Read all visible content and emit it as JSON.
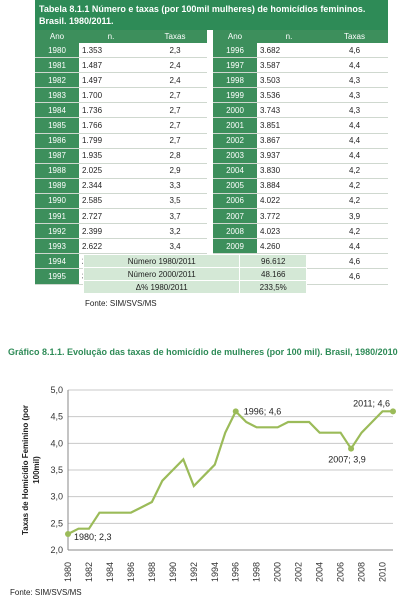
{
  "table": {
    "title": "Tabela 8.1.1 Número e taxas (por 100mil mulheres) de homicídios femininos. Brasil. 1980/2011.",
    "headers": [
      "Ano",
      "n.",
      "Taxas"
    ],
    "rows_left": [
      [
        "1980",
        "1.353",
        "2,3"
      ],
      [
        "1981",
        "1.487",
        "2,4"
      ],
      [
        "1982",
        "1.497",
        "2,4"
      ],
      [
        "1983",
        "1.700",
        "2,7"
      ],
      [
        "1984",
        "1.736",
        "2,7"
      ],
      [
        "1985",
        "1.766",
        "2,7"
      ],
      [
        "1986",
        "1.799",
        "2,7"
      ],
      [
        "1987",
        "1.935",
        "2,8"
      ],
      [
        "1988",
        "2.025",
        "2,9"
      ],
      [
        "1989",
        "2.344",
        "3,3"
      ],
      [
        "1990",
        "2.585",
        "3,5"
      ],
      [
        "1991",
        "2.727",
        "3,7"
      ],
      [
        "1992",
        "2.399",
        "3,2"
      ],
      [
        "1993",
        "2.622",
        "3,4"
      ],
      [
        "1994",
        "2.838",
        "3,6"
      ],
      [
        "1995",
        "3.325",
        "4,2"
      ]
    ],
    "rows_right": [
      [
        "1996",
        "3.682",
        "4,6"
      ],
      [
        "1997",
        "3.587",
        "4,4"
      ],
      [
        "1998",
        "3.503",
        "4,3"
      ],
      [
        "1999",
        "3.536",
        "4,3"
      ],
      [
        "2000",
        "3.743",
        "4,3"
      ],
      [
        "2001",
        "3.851",
        "4,4"
      ],
      [
        "2002",
        "3.867",
        "4,4"
      ],
      [
        "2003",
        "3.937",
        "4,4"
      ],
      [
        "2004",
        "3.830",
        "4,2"
      ],
      [
        "2005",
        "3.884",
        "4,2"
      ],
      [
        "2006",
        "4.022",
        "4,2"
      ],
      [
        "2007",
        "3.772",
        "3,9"
      ],
      [
        "2008",
        "4.023",
        "4,2"
      ],
      [
        "2009",
        "4.260",
        "4,4"
      ],
      [
        "2010",
        "4.465",
        "4,6"
      ],
      [
        "2011",
        "4.512",
        "4,6"
      ]
    ],
    "summary": [
      [
        "Número 1980/2011",
        "96.612"
      ],
      [
        "Número 2000/2011",
        "48.166"
      ],
      [
        "Δ% 1980/2011",
        "233,5%"
      ]
    ],
    "source": "Fonte: SIM/SVS/MS"
  },
  "graph": {
    "title": "Gráfico 8.1.1. Evolução das taxas de homicídio de mulheres (por 100 mil). Brasil, 1980/2010",
    "source": "Fonte: SIM/SVS/MS"
  },
  "chart_data": {
    "type": "line",
    "title": "Gráfico 8.1.1. Evolução das taxas de homicídio de mulheres (por 100 mil). Brasil, 1980/2010",
    "xlabel": "",
    "ylabel": "Taxas de Homicídio Feminino (por 100mil)",
    "ylim": [
      2.0,
      5.0
    ],
    "yticks": [
      "2,0",
      "2,5",
      "3,0",
      "3,5",
      "4,0",
      "4,5",
      "5,0"
    ],
    "xticks": [
      "1980",
      "1982",
      "1984",
      "1986",
      "1988",
      "1990",
      "1992",
      "1994",
      "1996",
      "1998",
      "2000",
      "2002",
      "2004",
      "2006",
      "2008",
      "2010"
    ],
    "grid": true,
    "line_color": "#9bbb59",
    "x": [
      1980,
      1981,
      1982,
      1983,
      1984,
      1985,
      1986,
      1987,
      1988,
      1989,
      1990,
      1991,
      1992,
      1993,
      1994,
      1995,
      1996,
      1997,
      1998,
      1999,
      2000,
      2001,
      2002,
      2003,
      2004,
      2005,
      2006,
      2007,
      2008,
      2009,
      2010,
      2011
    ],
    "values": [
      2.3,
      2.4,
      2.4,
      2.7,
      2.7,
      2.7,
      2.7,
      2.8,
      2.9,
      3.3,
      3.5,
      3.7,
      3.2,
      3.4,
      3.6,
      4.2,
      4.6,
      4.4,
      4.3,
      4.3,
      4.3,
      4.4,
      4.4,
      4.4,
      4.2,
      4.2,
      4.2,
      3.9,
      4.2,
      4.4,
      4.6,
      4.6
    ],
    "annotations": [
      {
        "x": 1980,
        "y": 2.3,
        "label": "1980; 2,3"
      },
      {
        "x": 1996,
        "y": 4.6,
        "label": "1996; 4,6"
      },
      {
        "x": 2007,
        "y": 3.9,
        "label": "2007; 3,9"
      },
      {
        "x": 2011,
        "y": 4.6,
        "label": "2011; 4,6"
      }
    ]
  }
}
